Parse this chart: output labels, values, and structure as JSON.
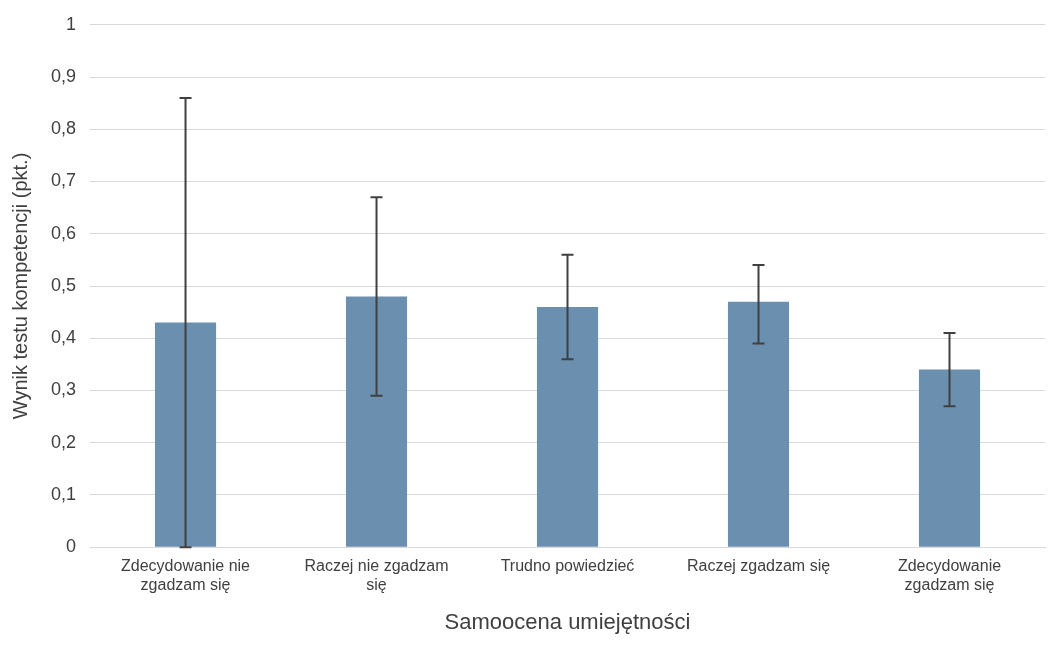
{
  "chart_data": {
    "type": "bar",
    "xlabel": "Samoocena umiejętności",
    "ylabel": "Wynik testu kompetencji (pkt.)",
    "categories": [
      "Zdecydowanie nie zgadzam się",
      "Raczej nie zgadzam się",
      "Trudno powiedzieć",
      "Raczej zgadzam się",
      "Zdecydowanie zgadzam się"
    ],
    "values": [
      0.43,
      0.48,
      0.46,
      0.47,
      0.34
    ],
    "errors": [
      [
        0,
        0.86
      ],
      [
        0.29,
        0.67
      ],
      [
        0.36,
        0.56
      ],
      [
        0.39,
        0.54
      ],
      [
        0.27,
        0.41
      ]
    ],
    "color": "#6a8faf",
    "ylim": [
      0,
      1
    ],
    "yticks": [
      0,
      {
        "value": 0.1,
        "label": "0,1"
      },
      {
        "value": 0.2,
        "label": "0,2"
      },
      {
        "value": 0.3,
        "label": "0,3"
      },
      {
        "value": 0.4,
        "label": "0,4"
      },
      {
        "value": 0.5,
        "label": "0,5"
      },
      {
        "value": 0.6,
        "label": "0,6"
      },
      {
        "value": 0.7,
        "label": "0,7"
      },
      {
        "value": 0.8,
        "label": "0,8"
      },
      {
        "value": 0.9,
        "label": "0,9"
      },
      1
    ],
    "grid": "y",
    "legend": false
  }
}
